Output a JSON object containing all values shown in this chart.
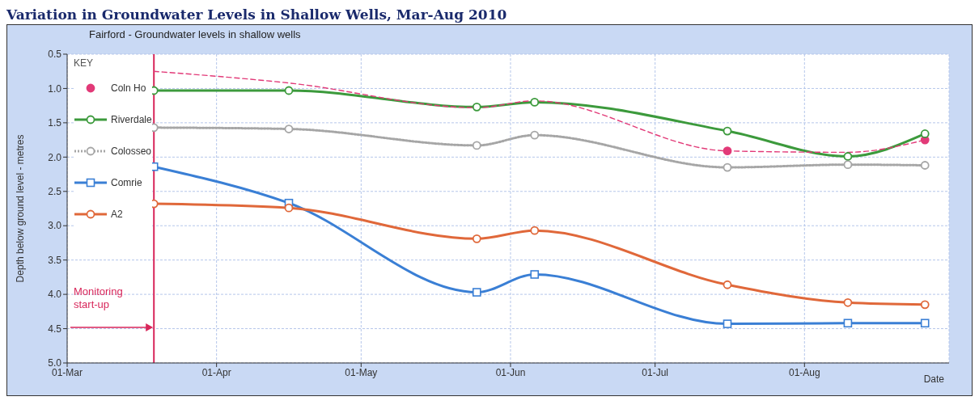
{
  "chart_data": {
    "type": "line",
    "title": "Variation in Groundwater Levels in Shallow Wells, Mar-Aug 2010",
    "subtitle": "Fairford - Groundwater levels in shallow wells",
    "xlabel": "Date",
    "ylabel": "Depth below ground level - metres",
    "legend_title": "KEY",
    "legend": "top left",
    "grid": true,
    "x": [
      "--03-19",
      "--04-16",
      "--05-25",
      "--06-06",
      "--07-16",
      "--08-10",
      "--08-26"
    ],
    "xlim": [
      "--03-01",
      "--08-31"
    ],
    "xticks": [
      {
        "value": "--03-01",
        "label": "01-Mar"
      },
      {
        "value": "--04-01",
        "label": "01-Apr"
      },
      {
        "value": "--05-01",
        "label": "01-May"
      },
      {
        "value": "--06-01",
        "label": "01-Jun"
      },
      {
        "value": "--07-01",
        "label": "01-Jul"
      },
      {
        "value": "--08-01",
        "label": "01-Aug"
      }
    ],
    "ylim": [
      5.0,
      0.5
    ],
    "yticks": [
      0.5,
      {
        "value": 1,
        "label": "1.0"
      },
      1.5,
      {
        "value": 2,
        "label": "2.0"
      },
      2.5,
      {
        "value": 3,
        "label": "3.0"
      },
      3.5,
      {
        "value": 4,
        "label": "4.0"
      },
      4.5,
      {
        "value": 5,
        "label": "5.0"
      }
    ],
    "ref_lines": [
      {
        "axis": "x",
        "value": "--03-19",
        "label": "Monitoring start-up",
        "color": "#d8265a"
      }
    ],
    "series": [
      {
        "name": "Coln Ho",
        "type": "scatter",
        "color": "#e23a78",
        "marker": "circle",
        "x": [
          "--07-16",
          "--08-26"
        ],
        "values": [
          1.91,
          1.75
        ]
      },
      {
        "name": "Riverdale",
        "color": "#3c9a3c",
        "marker": "circle",
        "values": [
          1.03,
          1.03,
          1.27,
          1.2,
          1.62,
          1.99,
          1.66
        ]
      },
      {
        "name": "Colosseo",
        "color": "#a6a6a6",
        "line_style": "dotted",
        "marker": "circle",
        "values": [
          1.57,
          1.59,
          1.83,
          1.68,
          2.15,
          2.11,
          2.12
        ]
      },
      {
        "name": "Comrie",
        "color": "#3a7fd5",
        "marker": "square",
        "values": [
          2.14,
          2.67,
          3.97,
          3.71,
          4.43,
          4.42,
          4.42
        ]
      },
      {
        "name": "A2",
        "color": "#e0683a",
        "marker": "circle",
        "values": [
          2.68,
          2.74,
          3.19,
          3.07,
          3.86,
          4.12,
          4.15
        ]
      },
      {
        "type": "line",
        "color": "#e23a78",
        "line_style": "dashed",
        "marker": "none",
        "x": [
          "--03-19",
          "--04-16",
          "--05-25",
          "--06-06",
          "--07-16",
          "--08-10",
          "--08-26"
        ],
        "values": [
          0.75,
          0.92,
          1.28,
          1.18,
          1.91,
          1.93,
          1.75
        ]
      }
    ]
  }
}
